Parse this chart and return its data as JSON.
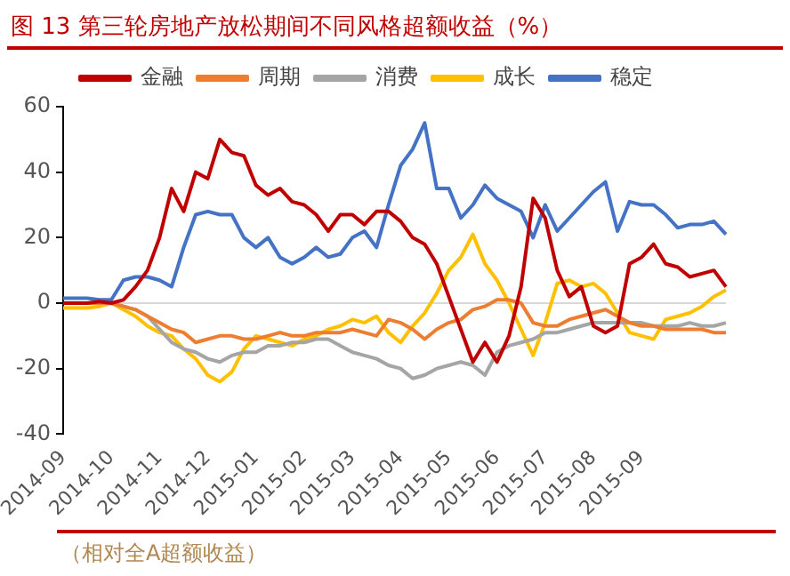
{
  "chart_data": {
    "type": "line",
    "title": "图 13 第三轮房地产放松期间不同风格超额收益（%）",
    "annotations": [
      "（相对全A超额收益）"
    ],
    "categories": [
      "2014-09",
      null,
      null,
      null,
      "2014-10",
      null,
      null,
      null,
      "2014-11",
      null,
      null,
      null,
      "2014-12",
      null,
      null,
      null,
      "2015-01",
      null,
      null,
      null,
      "2015-02",
      null,
      null,
      null,
      "2015-03",
      null,
      null,
      null,
      "2015-04",
      null,
      null,
      null,
      "2015-05",
      null,
      null,
      null,
      "2015-06",
      null,
      null,
      null,
      "2015-07",
      null,
      null,
      null,
      "2015-08",
      null,
      null,
      null,
      "2015-09",
      null,
      null,
      null,
      null,
      null,
      null,
      null
    ],
    "ref_lines": [
      {
        "axis": "y",
        "value": 0,
        "color": "#d9d9d9"
      }
    ],
    "ylim": [
      -40,
      60
    ],
    "yticks": [
      -40,
      -20,
      0,
      20,
      40,
      60
    ],
    "grid": false,
    "legend": "top",
    "marker": "none",
    "line_style": "solid",
    "series": [
      {
        "name": "金融",
        "color": "#c00000",
        "values": [
          0,
          0,
          0,
          0.5,
          0,
          1,
          5,
          10,
          20,
          35,
          28,
          40,
          38,
          50,
          46,
          45,
          36,
          33,
          35,
          31,
          30,
          27,
          22,
          27,
          27,
          24,
          28,
          28,
          25,
          20,
          18,
          12,
          2,
          -8,
          -18,
          -12,
          -18,
          -10,
          5,
          32,
          26,
          10,
          2,
          5,
          -7,
          -9,
          -7,
          12,
          14,
          18,
          12,
          11,
          8,
          9,
          10,
          5
        ]
      },
      {
        "name": "周期",
        "color": "#ed7d31",
        "values": [
          0,
          0,
          0,
          0,
          0,
          -1,
          -2,
          -4,
          -6,
          -8,
          -9,
          -12,
          -11,
          -10,
          -10,
          -11,
          -11,
          -10,
          -9,
          -10,
          -10,
          -9,
          -9,
          -9,
          -8,
          -9,
          -10,
          -5,
          -6,
          -8,
          -11,
          -8,
          -6,
          -5,
          -2,
          -1,
          1,
          1,
          0,
          -6,
          -7,
          -7,
          -5,
          -4,
          -3,
          -2,
          -4,
          -6,
          -7,
          -7,
          -8,
          -8,
          -8,
          -8,
          -9,
          -9
        ]
      },
      {
        "name": "消费",
        "color": "#a5a5a5",
        "values": [
          0,
          0,
          0,
          0,
          0,
          -1,
          -2,
          -4,
          -8,
          -12,
          -14,
          -15,
          -17,
          -18,
          -16,
          -15,
          -15,
          -13,
          -13,
          -12,
          -12,
          -11,
          -11,
          -13,
          -15,
          -16,
          -17,
          -19,
          -20,
          -23,
          -22,
          -20,
          -19,
          -18,
          -19,
          -22,
          -15,
          -13,
          -12,
          -11,
          -9,
          -9,
          -8,
          -7,
          -6,
          -6,
          -6,
          -6,
          -6,
          -7,
          -7,
          -7,
          -6,
          -7,
          -7,
          -6
        ]
      },
      {
        "name": "成长",
        "color": "#ffc000",
        "values": [
          -1.5,
          -1.5,
          -1.5,
          -1,
          0,
          -2,
          -4,
          -7,
          -9,
          -10,
          -14,
          -17,
          -22,
          -24,
          -21,
          -14,
          -10,
          -11,
          -12,
          -13,
          -11,
          -10,
          -8,
          -7,
          -5,
          -6,
          -4,
          -9,
          -12,
          -7,
          -3,
          3,
          10,
          14,
          21,
          12,
          7,
          0,
          -8,
          -16,
          -6,
          6,
          7,
          5,
          6,
          3,
          -3,
          -9,
          -10,
          -11,
          -5,
          -4,
          -3,
          -1,
          2,
          4
        ]
      },
      {
        "name": "稳定",
        "color": "#4472c4",
        "values": [
          1.5,
          1.5,
          1.5,
          1,
          1,
          7,
          8,
          8,
          7,
          5,
          17,
          27,
          28,
          27,
          27,
          20,
          17,
          20,
          14,
          12,
          14,
          17,
          14,
          15,
          20,
          22,
          17,
          30,
          42,
          47,
          55,
          35,
          35,
          26,
          30,
          36,
          32,
          30,
          28,
          20,
          30,
          22,
          26,
          30,
          34,
          37,
          22,
          31,
          30,
          30,
          27,
          23,
          24,
          24,
          25,
          21
        ]
      }
    ]
  }
}
